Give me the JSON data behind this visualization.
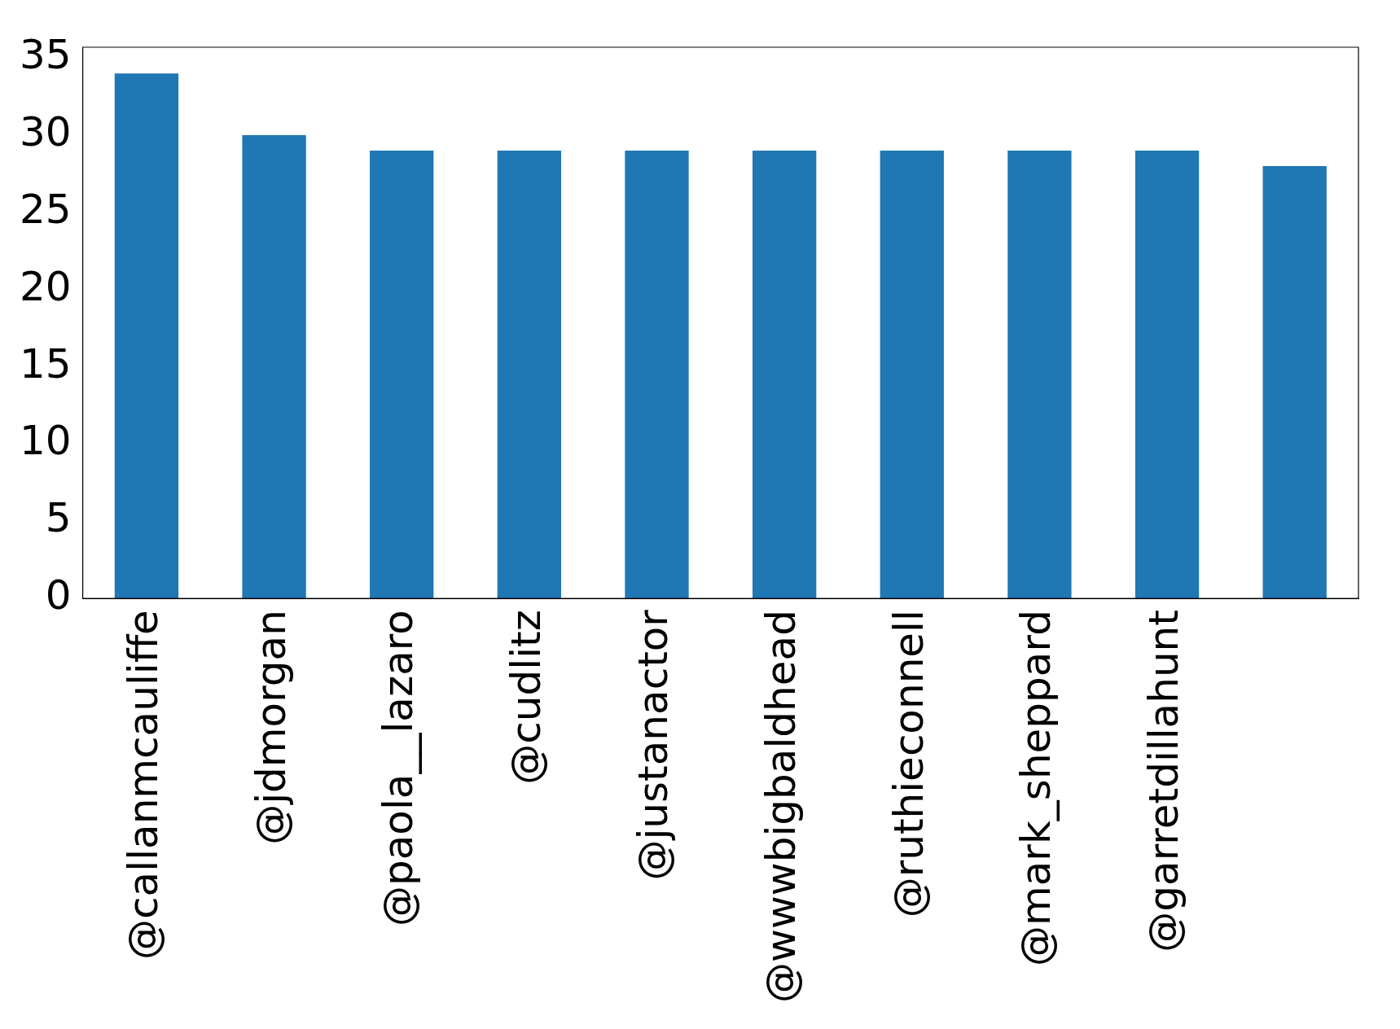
{
  "chart_data": {
    "type": "bar",
    "categories": [
      "@callanmcauliffe",
      "@jdmorgan",
      "@paola__lazaro",
      "@cudlitz",
      "@justanactor",
      "@wwwbigbaldhead",
      "@ruthieconnell",
      "@mark_sheppard",
      "@garretdillahunt",
      null
    ],
    "values": [
      34,
      30,
      29,
      29,
      29,
      29,
      29,
      29,
      29,
      28
    ],
    "color": "#1f77b4",
    "ylim": [
      0,
      35.7
    ],
    "yticks": [
      0,
      5,
      10,
      15,
      20,
      25,
      30,
      35
    ],
    "grid": false,
    "legend": false
  }
}
